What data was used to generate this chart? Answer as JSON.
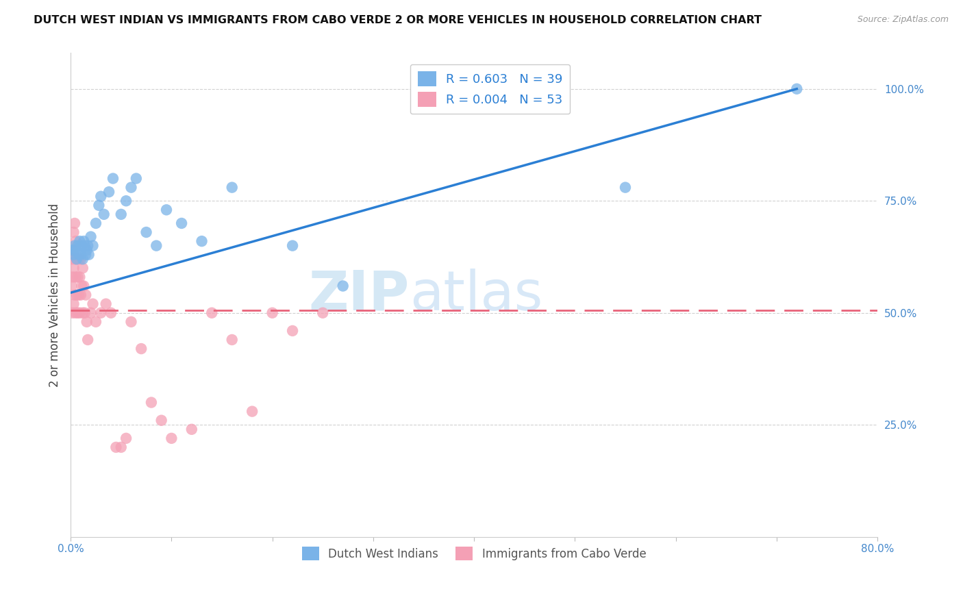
{
  "title": "DUTCH WEST INDIAN VS IMMIGRANTS FROM CABO VERDE 2 OR MORE VEHICLES IN HOUSEHOLD CORRELATION CHART",
  "source": "Source: ZipAtlas.com",
  "ylabel": "2 or more Vehicles in Household",
  "xlim": [
    0.0,
    0.8
  ],
  "ylim": [
    0.0,
    1.08
  ],
  "xticks": [
    0.0,
    0.1,
    0.2,
    0.3,
    0.4,
    0.5,
    0.6,
    0.7,
    0.8
  ],
  "xticklabels": [
    "0.0%",
    "",
    "",
    "",
    "",
    "",
    "",
    "",
    "80.0%"
  ],
  "yticks": [
    0.25,
    0.5,
    0.75,
    1.0
  ],
  "yticklabels": [
    "25.0%",
    "50.0%",
    "75.0%",
    "100.0%"
  ],
  "legend_blue_label": "R = 0.603   N = 39",
  "legend_pink_label": "R = 0.004   N = 53",
  "legend_bottom_blue": "Dutch West Indians",
  "legend_bottom_pink": "Immigrants from Cabo Verde",
  "blue_color": "#7ab3e8",
  "pink_color": "#f4a0b5",
  "blue_line_color": "#2b7fd4",
  "pink_line_color": "#e8637a",
  "grid_color": "#cccccc",
  "title_color": "#111111",
  "axis_tick_color": "#4488cc",
  "watermark_color": "#d5e8f5",
  "blue_scatter_x": [
    0.002,
    0.003,
    0.004,
    0.005,
    0.006,
    0.007,
    0.008,
    0.009,
    0.01,
    0.011,
    0.012,
    0.013,
    0.014,
    0.015,
    0.016,
    0.017,
    0.018,
    0.02,
    0.022,
    0.025,
    0.028,
    0.03,
    0.033,
    0.038,
    0.042,
    0.05,
    0.055,
    0.06,
    0.065,
    0.075,
    0.085,
    0.095,
    0.11,
    0.13,
    0.16,
    0.22,
    0.27,
    0.55,
    0.72
  ],
  "blue_scatter_y": [
    0.64,
    0.63,
    0.65,
    0.64,
    0.62,
    0.65,
    0.63,
    0.66,
    0.63,
    0.65,
    0.62,
    0.66,
    0.65,
    0.63,
    0.64,
    0.65,
    0.63,
    0.67,
    0.65,
    0.7,
    0.74,
    0.76,
    0.72,
    0.77,
    0.8,
    0.72,
    0.75,
    0.78,
    0.8,
    0.68,
    0.65,
    0.73,
    0.7,
    0.66,
    0.78,
    0.65,
    0.56,
    0.78,
    1.0
  ],
  "pink_scatter_x": [
    0.001,
    0.001,
    0.002,
    0.002,
    0.002,
    0.003,
    0.003,
    0.003,
    0.004,
    0.004,
    0.004,
    0.005,
    0.005,
    0.005,
    0.006,
    0.006,
    0.007,
    0.007,
    0.008,
    0.008,
    0.009,
    0.009,
    0.01,
    0.01,
    0.011,
    0.012,
    0.012,
    0.013,
    0.014,
    0.015,
    0.016,
    0.017,
    0.02,
    0.022,
    0.025,
    0.03,
    0.035,
    0.04,
    0.045,
    0.05,
    0.055,
    0.06,
    0.07,
    0.08,
    0.09,
    0.1,
    0.12,
    0.14,
    0.16,
    0.18,
    0.2,
    0.22,
    0.25
  ],
  "pink_scatter_y": [
    0.56,
    0.62,
    0.5,
    0.58,
    0.64,
    0.52,
    0.6,
    0.68,
    0.54,
    0.62,
    0.7,
    0.5,
    0.58,
    0.66,
    0.54,
    0.62,
    0.5,
    0.58,
    0.54,
    0.62,
    0.5,
    0.58,
    0.54,
    0.62,
    0.56,
    0.5,
    0.6,
    0.56,
    0.5,
    0.54,
    0.48,
    0.44,
    0.5,
    0.52,
    0.48,
    0.5,
    0.52,
    0.5,
    0.2,
    0.2,
    0.22,
    0.48,
    0.42,
    0.3,
    0.26,
    0.22,
    0.24,
    0.5,
    0.44,
    0.28,
    0.5,
    0.46,
    0.5
  ],
  "blue_trend_x": [
    0.0,
    0.72
  ],
  "blue_trend_y": [
    0.545,
    1.0
  ],
  "pink_trend_y": 0.505
}
